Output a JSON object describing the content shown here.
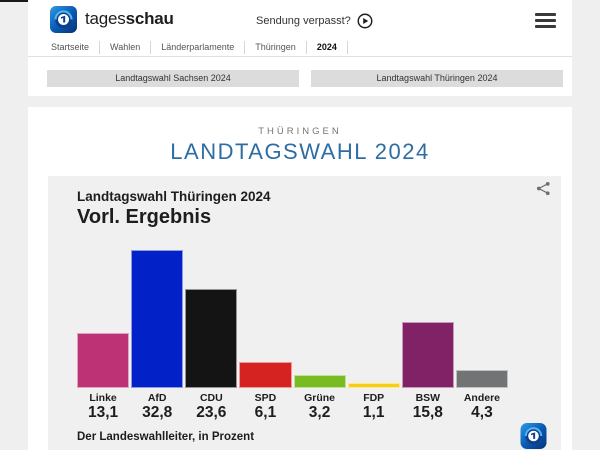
{
  "header": {
    "brand": {
      "regular": "tages",
      "bold": "schau"
    },
    "sendung_verpasst_label": "Sendung verpasst?",
    "breadcrumb": [
      {
        "label": "Startseite",
        "active": false
      },
      {
        "label": "Wahlen",
        "active": false
      },
      {
        "label": "Länderparlamente",
        "active": false
      },
      {
        "label": "Thüringen",
        "active": false
      },
      {
        "label": "2024",
        "active": true
      }
    ]
  },
  "tabs": [
    {
      "label": "Landtagswahl Sachsen 2024"
    },
    {
      "label": "Landtagswahl Thüringen 2024"
    }
  ],
  "main": {
    "kicker": "THÜRINGEN",
    "title": "LANDTAGSWAHL 2024",
    "title_color": "#2e6da4"
  },
  "chart_data": {
    "type": "bar",
    "title": "Landtagswahl Thüringen 2024",
    "subtitle": "Vorl. Ergebnis",
    "categories": [
      "Linke",
      "AfD",
      "CDU",
      "SPD",
      "Grüne",
      "FDP",
      "BSW",
      "Andere"
    ],
    "values": [
      13.1,
      32.8,
      23.6,
      6.1,
      3.2,
      1.1,
      15.8,
      4.3
    ],
    "value_labels": [
      "13,1",
      "32,8",
      "23,6",
      "6,1",
      "3,2",
      "1,1",
      "15,8",
      "4,3"
    ],
    "colors": [
      "#bd3274",
      "#0222c8",
      "#141414",
      "#d42320",
      "#79bc22",
      "#f7ce17",
      "#812266",
      "#717374"
    ],
    "unit": "Prozent",
    "source": "Der Landeswahlleiter, in Prozent",
    "ylim": [
      0,
      35
    ],
    "grid": false,
    "legend": "none"
  }
}
